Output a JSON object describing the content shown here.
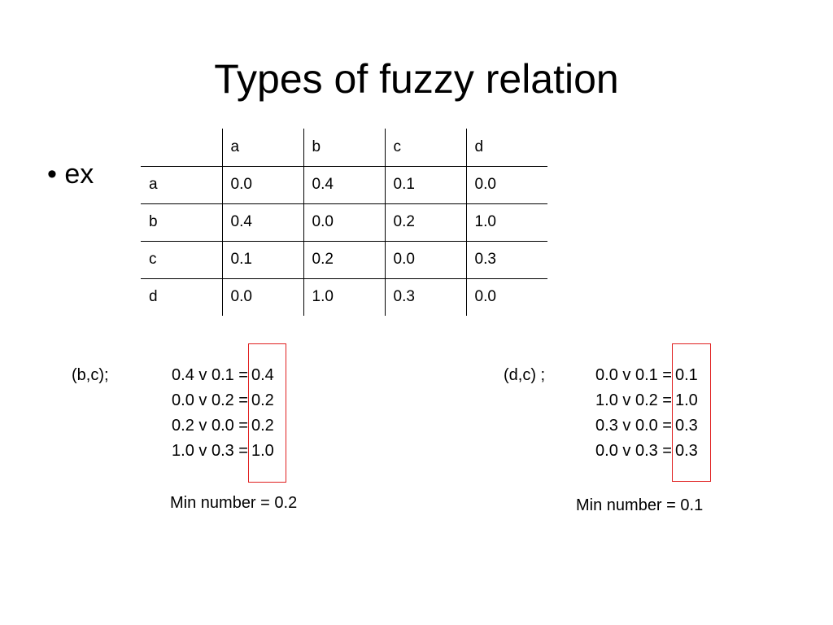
{
  "title": "Types of fuzzy relation",
  "bullet": {
    "marker": "•",
    "text": "ex"
  },
  "table": {
    "header": [
      "",
      "a",
      "b",
      "c",
      "d"
    ],
    "rows": [
      [
        "a",
        "0.0",
        "0.4",
        "0.1",
        "0.0"
      ],
      [
        "b",
        "0.4",
        "0.0",
        "0.2",
        "1.0"
      ],
      [
        "c",
        "0.1",
        "0.2",
        "0.0",
        "0.3"
      ],
      [
        "d",
        "0.0",
        "1.0",
        "0.3",
        "0.0"
      ]
    ]
  },
  "left": {
    "label": "(b,c);",
    "lines": [
      {
        "lhs": "0.4 v 0.1 =",
        "rhs": "0.4"
      },
      {
        "lhs": "0.0 v 0.2 =",
        "rhs": "0.2"
      },
      {
        "lhs": "0.2 v 0.0 =",
        "rhs": "0.2"
      },
      {
        "lhs": "1.0 v 0.3 =",
        "rhs": "1.0"
      }
    ],
    "result": "Min number = 0.2"
  },
  "right": {
    "label": "(d,c) ;",
    "lines": [
      {
        "lhs": "0.0 v 0.1 =",
        "rhs": "0.1"
      },
      {
        "lhs": "1.0 v 0.2 =",
        "rhs": "1.0"
      },
      {
        "lhs": "0.3 v 0.0 =",
        "rhs": "0.3"
      },
      {
        "lhs": "0.0 v 0.3 =",
        "rhs": "0.3"
      }
    ],
    "result": "Min number = 0.1"
  },
  "colors": {
    "highlight_box": "#e02020"
  }
}
